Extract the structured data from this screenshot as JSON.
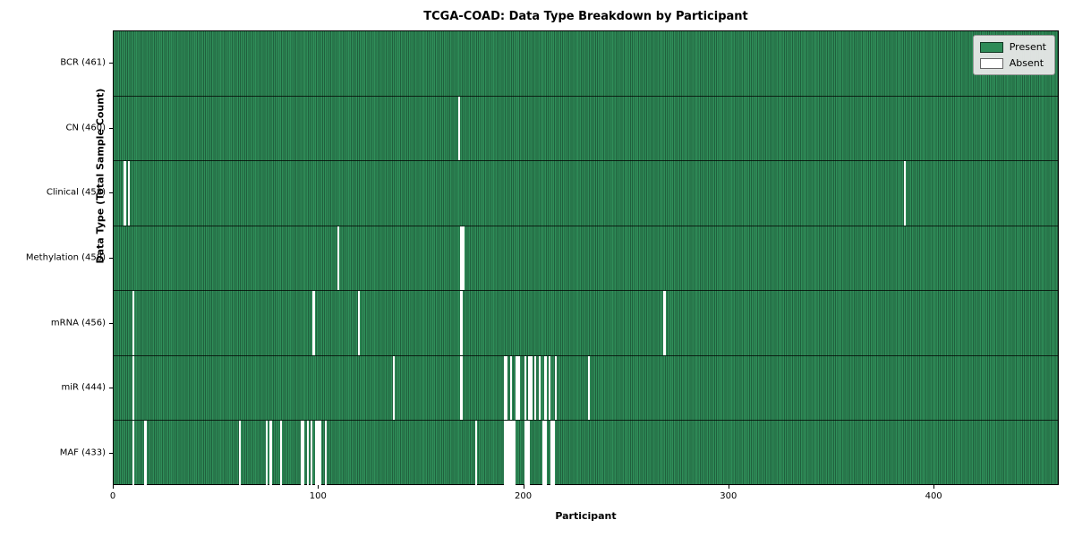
{
  "title": "TCGA-COAD: Data Type Breakdown by Participant",
  "xlabel": "Participant",
  "ylabel": "Data Type (Total Sample Count)",
  "legend": {
    "entries": [
      {
        "label": "Present",
        "color": "#2e8b57"
      },
      {
        "label": "Absent",
        "color": "#ffffff"
      }
    ]
  },
  "colors": {
    "present": "#2e8b57",
    "present_edge": "#20603d",
    "absent": "#ffffff",
    "plot_border": "#000000",
    "legend_bg": "#e8e8e8"
  },
  "chart_data": {
    "type": "heatmap",
    "n_participants": 461,
    "x_ticks": [
      0,
      100,
      200,
      300,
      400
    ],
    "xlim": [
      0,
      461
    ],
    "legend_position": "upper right",
    "grid": false,
    "rows": [
      {
        "label": "BCR (461)",
        "total": 461,
        "absent": []
      },
      {
        "label": "CN (460)",
        "total": 460,
        "absent": [
          168
        ]
      },
      {
        "label": "Clinical (458)",
        "total": 458,
        "absent": [
          5,
          7,
          385
        ]
      },
      {
        "label": "Methylation (458)",
        "total": 458,
        "absent": [
          109,
          169,
          170
        ]
      },
      {
        "label": "mRNA (456)",
        "total": 456,
        "absent": [
          9,
          97,
          119,
          169,
          268
        ]
      },
      {
        "label": "miR (444)",
        "total": 444,
        "absent": [
          9,
          136,
          169,
          190,
          191,
          193,
          196,
          197,
          200,
          202,
          203,
          205,
          207,
          210,
          212,
          215,
          231
        ]
      },
      {
        "label": "MAF (433)",
        "total": 433,
        "absent": [
          9,
          15,
          61,
          74,
          76,
          81,
          91,
          92,
          94,
          96,
          98,
          99,
          100,
          103,
          176,
          190,
          191,
          192,
          193,
          194,
          195,
          200,
          201,
          202,
          209,
          210,
          213,
          214
        ]
      }
    ]
  }
}
